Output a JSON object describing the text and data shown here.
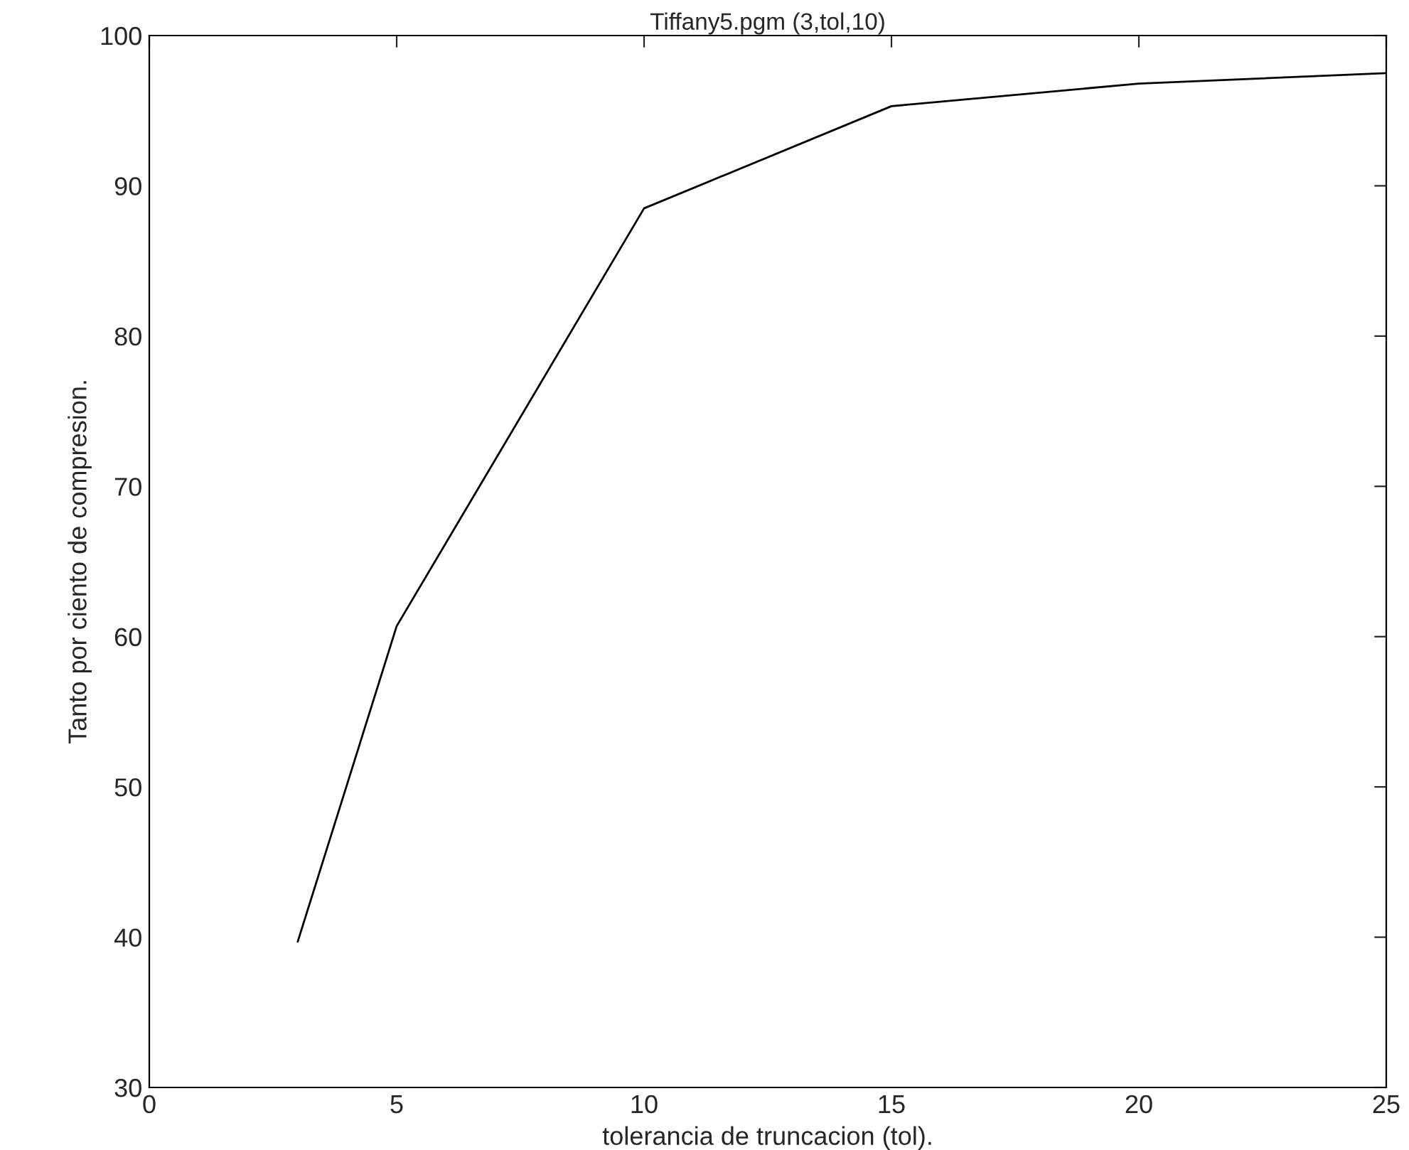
{
  "chart_data": {
    "type": "line",
    "title": "Tiffany5.pgm (3,tol,10)",
    "xlabel": "tolerancia de truncacion (tol).",
    "ylabel": "Tanto por ciento de compresion.",
    "x": [
      3,
      5,
      10,
      15,
      20,
      25
    ],
    "series": [
      {
        "color": "#000000",
        "values": [
          39.7,
          60.7,
          88.5,
          95.3,
          96.8,
          97.5
        ]
      }
    ],
    "xlim": [
      0,
      25
    ],
    "xticks": [
      0,
      5,
      10,
      15,
      20,
      25
    ],
    "ylim": [
      30,
      100
    ],
    "yticks": [
      30,
      40,
      50,
      60,
      70,
      80,
      90,
      100
    ],
    "grid": false,
    "legend": false,
    "marker": "none",
    "line_style": "solid"
  }
}
